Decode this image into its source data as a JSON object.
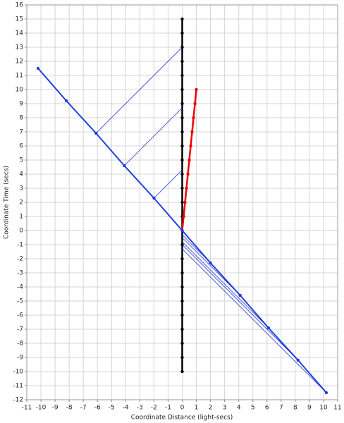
{
  "chart_data": {
    "type": "line",
    "xlabel": "Coordinate Distance (light-secs)",
    "ylabel": "Coordinate Time (secs)",
    "xlim": [
      -11,
      11
    ],
    "ylim": [
      -12,
      16
    ],
    "xticks": [
      -11,
      -10,
      -9,
      -8,
      -7,
      -6,
      -5,
      -4,
      -3,
      -2,
      -1,
      0,
      1,
      2,
      3,
      4,
      5,
      6,
      7,
      8,
      9,
      10,
      11
    ],
    "yticks": [
      -12,
      -11,
      -10,
      -9,
      -8,
      -7,
      -6,
      -5,
      -4,
      -3,
      -2,
      -1,
      0,
      1,
      2,
      3,
      4,
      5,
      6,
      7,
      8,
      9,
      10,
      11,
      12,
      13,
      14,
      15,
      16
    ],
    "grid": true,
    "series": [
      {
        "color": "#000000",
        "markers": true,
        "width": 2.5,
        "x": [
          0,
          0,
          0,
          0,
          0,
          0,
          0,
          0,
          0,
          0,
          0,
          0,
          0,
          0,
          0,
          0,
          0,
          0,
          0,
          0,
          0,
          0,
          0,
          0,
          0,
          0
        ],
        "values": [
          -10,
          -9,
          -8,
          -7,
          -6,
          -5,
          -4,
          -3,
          -2,
          -1,
          0,
          1,
          2,
          3,
          4,
          5,
          6,
          7,
          8,
          9,
          10,
          11,
          12,
          13,
          14,
          15
        ]
      },
      {
        "color": "#ee0000",
        "markers": true,
        "width": 2.5,
        "x": [
          0,
          0.1,
          0.2,
          0.3,
          0.4,
          0.5,
          0.6,
          0.7,
          0.8,
          0.9,
          1
        ],
        "values": [
          0,
          1,
          2,
          3,
          4,
          5,
          6,
          7,
          8,
          9,
          10
        ]
      },
      {
        "color": "#1f3fe0",
        "markers": true,
        "width": 2,
        "x": [
          -10.2,
          -8.2,
          -6.1,
          -4.1,
          -2.0,
          0,
          2.0,
          4.1,
          6.1,
          8.2,
          10.2
        ],
        "values": [
          11.5,
          9.2,
          6.9,
          4.6,
          2.3,
          0,
          -2.3,
          -4.6,
          -6.9,
          -9.2,
          -11.5
        ]
      },
      {
        "color": "#2233cc",
        "markers": false,
        "width": 0.8,
        "x": [
          -2.0,
          0
        ],
        "values": [
          2.3,
          4.3
        ]
      },
      {
        "color": "#2233cc",
        "markers": false,
        "width": 0.8,
        "x": [
          -4.1,
          0
        ],
        "values": [
          4.6,
          8.7
        ]
      },
      {
        "color": "#2233cc",
        "markers": false,
        "width": 0.8,
        "x": [
          -6.1,
          0
        ],
        "values": [
          6.9,
          13
        ]
      },
      {
        "color": "#2233cc",
        "markers": false,
        "width": 0.8,
        "x": [
          0,
          2.0
        ],
        "values": [
          -0.3,
          -2.3
        ]
      },
      {
        "color": "#2233cc",
        "markers": false,
        "width": 0.8,
        "x": [
          0,
          4.1
        ],
        "values": [
          -0.5,
          -4.6
        ]
      },
      {
        "color": "#2233cc",
        "markers": false,
        "width": 0.8,
        "x": [
          0,
          6.1
        ],
        "values": [
          -0.8,
          -6.9
        ]
      },
      {
        "color": "#2233cc",
        "markers": false,
        "width": 0.8,
        "x": [
          0,
          8.2
        ],
        "values": [
          -1.0,
          -9.2
        ]
      },
      {
        "color": "#2233cc",
        "markers": false,
        "width": 0.8,
        "x": [
          0,
          10.2
        ],
        "values": [
          -1.3,
          -11.5
        ]
      }
    ]
  }
}
